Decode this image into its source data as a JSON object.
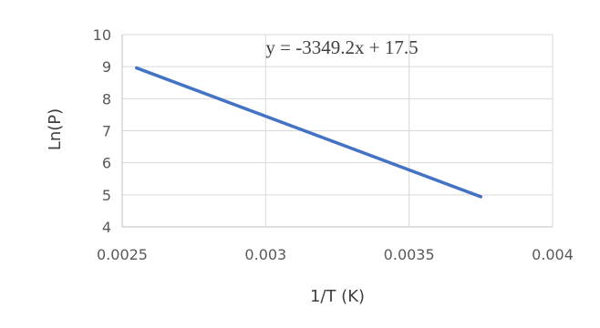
{
  "chart_data": {
    "type": "line",
    "xlabel": "1/T (K)",
    "ylabel": "Ln(P)",
    "xlim": [
      0.0025,
      0.004
    ],
    "ylim": [
      4,
      10
    ],
    "x_ticks": [
      "0.0025",
      "0.003",
      "0.0035",
      "0.004"
    ],
    "x_tick_values": [
      0.0025,
      0.003,
      0.0035,
      0.004
    ],
    "y_ticks": [
      "4",
      "5",
      "6",
      "7",
      "8",
      "9",
      "10"
    ],
    "y_tick_values": [
      4,
      5,
      6,
      7,
      8,
      9,
      10
    ],
    "grid": true,
    "annotation": "y = -3349.2x + 17.5",
    "series": [
      {
        "color": "#4472c4",
        "x": [
          0.00255,
          0.00375
        ],
        "y": [
          8.96,
          4.94
        ]
      }
    ]
  }
}
